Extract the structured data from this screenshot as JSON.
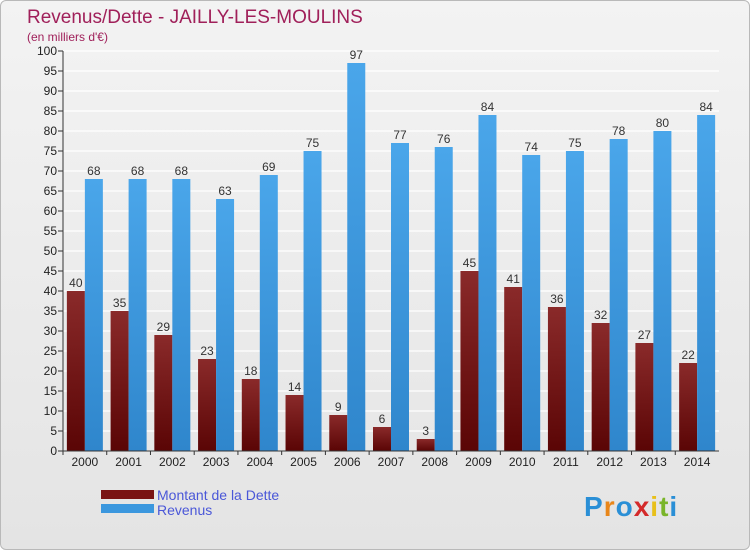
{
  "chart_data": {
    "type": "bar",
    "title": "Revenus/Dette - JAILLY-LES-MOULINS",
    "subtitle": "(en milliers d'€)",
    "xlabel": "",
    "ylabel": "",
    "ylim": [
      0,
      100
    ],
    "yticks": [
      0,
      5,
      10,
      15,
      20,
      25,
      30,
      35,
      40,
      45,
      50,
      55,
      60,
      65,
      70,
      75,
      80,
      85,
      90,
      95,
      100
    ],
    "categories": [
      "2000",
      "2001",
      "2002",
      "2003",
      "2004",
      "2005",
      "2006",
      "2007",
      "2008",
      "2009",
      "2010",
      "2011",
      "2012",
      "2013",
      "2014"
    ],
    "series": [
      {
        "name": "Montant de la Dette",
        "color": "#7a1313",
        "values": [
          40,
          35,
          29,
          23,
          18,
          14,
          9,
          6,
          3,
          45,
          41,
          36,
          32,
          27,
          22
        ]
      },
      {
        "name": "Revenus",
        "color": "#3b97de",
        "values": [
          68,
          68,
          68,
          63,
          69,
          75,
          97,
          77,
          76,
          84,
          74,
          75,
          78,
          80,
          84
        ]
      }
    ],
    "legend_position": "bottom-left",
    "grid": true
  },
  "logo": {
    "letters": [
      "P",
      "r",
      "o",
      "x",
      "i",
      "t",
      "i"
    ],
    "colors": [
      "#2a8fd6",
      "#e8861a",
      "#2a8fd6",
      "#d42a2a",
      "#e8c01a",
      "#7ab52a",
      "#2a8fd6"
    ]
  }
}
